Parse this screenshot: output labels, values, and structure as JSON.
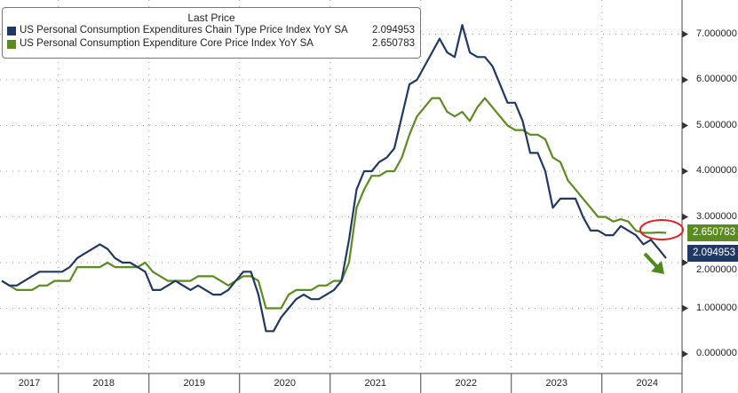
{
  "chart_data": {
    "type": "line",
    "title": "Last Price",
    "ylim": [
      -0.3,
      7.6
    ],
    "yticks": [
      "0.000000",
      "1.000000",
      "2.000000",
      "3.000000",
      "4.000000",
      "5.000000",
      "6.000000",
      "7.000000"
    ],
    "xticks": [
      "2017",
      "2018",
      "2019",
      "2020",
      "2021",
      "2022",
      "2023",
      "2024"
    ],
    "start_month": "2017-05",
    "grid": true,
    "legend_placement": "top-left",
    "series": [
      {
        "name": "US Personal Consumption Expenditures Chain Type Price Index YoY SA",
        "last": "2.094953",
        "color": "#1f3864",
        "values": [
          1.6,
          1.5,
          1.5,
          1.6,
          1.7,
          1.8,
          1.8,
          1.8,
          1.8,
          1.9,
          2.1,
          2.2,
          2.3,
          2.4,
          2.3,
          2.1,
          2.0,
          2.0,
          1.9,
          1.8,
          1.4,
          1.4,
          1.5,
          1.6,
          1.5,
          1.4,
          1.5,
          1.4,
          1.3,
          1.3,
          1.4,
          1.6,
          1.8,
          1.8,
          1.3,
          0.5,
          0.5,
          0.8,
          1.0,
          1.2,
          1.3,
          1.2,
          1.2,
          1.3,
          1.4,
          1.6,
          2.5,
          3.6,
          4.0,
          4.0,
          4.2,
          4.3,
          4.5,
          5.2,
          5.9,
          6.0,
          6.3,
          6.6,
          6.9,
          6.6,
          6.5,
          7.2,
          6.6,
          6.5,
          6.5,
          6.3,
          5.9,
          5.5,
          5.5,
          5.1,
          4.4,
          4.4,
          4.0,
          3.2,
          3.4,
          3.4,
          3.4,
          3.0,
          2.7,
          2.7,
          2.6,
          2.6,
          2.8,
          2.7,
          2.6,
          2.4,
          2.5,
          2.3,
          2.094953
        ]
      },
      {
        "name": "US Personal Consumption Expenditure Core Price Index YoY SA",
        "last": "2.650783",
        "color": "#5b8c1e",
        "values": [
          1.6,
          1.5,
          1.4,
          1.4,
          1.4,
          1.5,
          1.5,
          1.6,
          1.6,
          1.6,
          1.9,
          1.9,
          1.9,
          1.9,
          2.0,
          1.9,
          1.9,
          1.9,
          1.9,
          2.0,
          1.8,
          1.7,
          1.6,
          1.6,
          1.6,
          1.6,
          1.7,
          1.7,
          1.7,
          1.6,
          1.5,
          1.6,
          1.7,
          1.7,
          1.6,
          1.0,
          1.0,
          1.0,
          1.3,
          1.4,
          1.4,
          1.4,
          1.5,
          1.5,
          1.6,
          1.6,
          2.0,
          3.2,
          3.6,
          3.9,
          3.9,
          4.0,
          4.0,
          4.3,
          4.8,
          5.2,
          5.4,
          5.6,
          5.6,
          5.3,
          5.2,
          5.3,
          5.1,
          5.4,
          5.6,
          5.4,
          5.2,
          5.0,
          4.9,
          4.9,
          4.8,
          4.8,
          4.7,
          4.3,
          4.2,
          3.8,
          3.6,
          3.4,
          3.2,
          3.0,
          3.0,
          2.9,
          2.95,
          2.9,
          2.7,
          2.65,
          2.65,
          2.66,
          2.650783
        ]
      }
    ]
  }
}
